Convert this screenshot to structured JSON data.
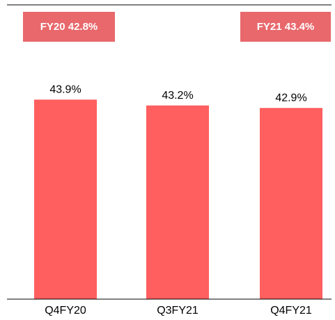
{
  "chart_data": {
    "type": "bar",
    "annotations": [
      "FY20 42.8%",
      "FY21 43.4%"
    ],
    "categories": [
      "Q4FY20",
      "Q3FY21",
      "Q4FY21"
    ],
    "values": [
      43.9,
      43.2,
      42.9
    ],
    "value_labels": [
      "43.9%",
      "43.2%",
      "42.9%"
    ],
    "color": "#ff5f5f",
    "ylim": [
      20,
      55
    ]
  }
}
